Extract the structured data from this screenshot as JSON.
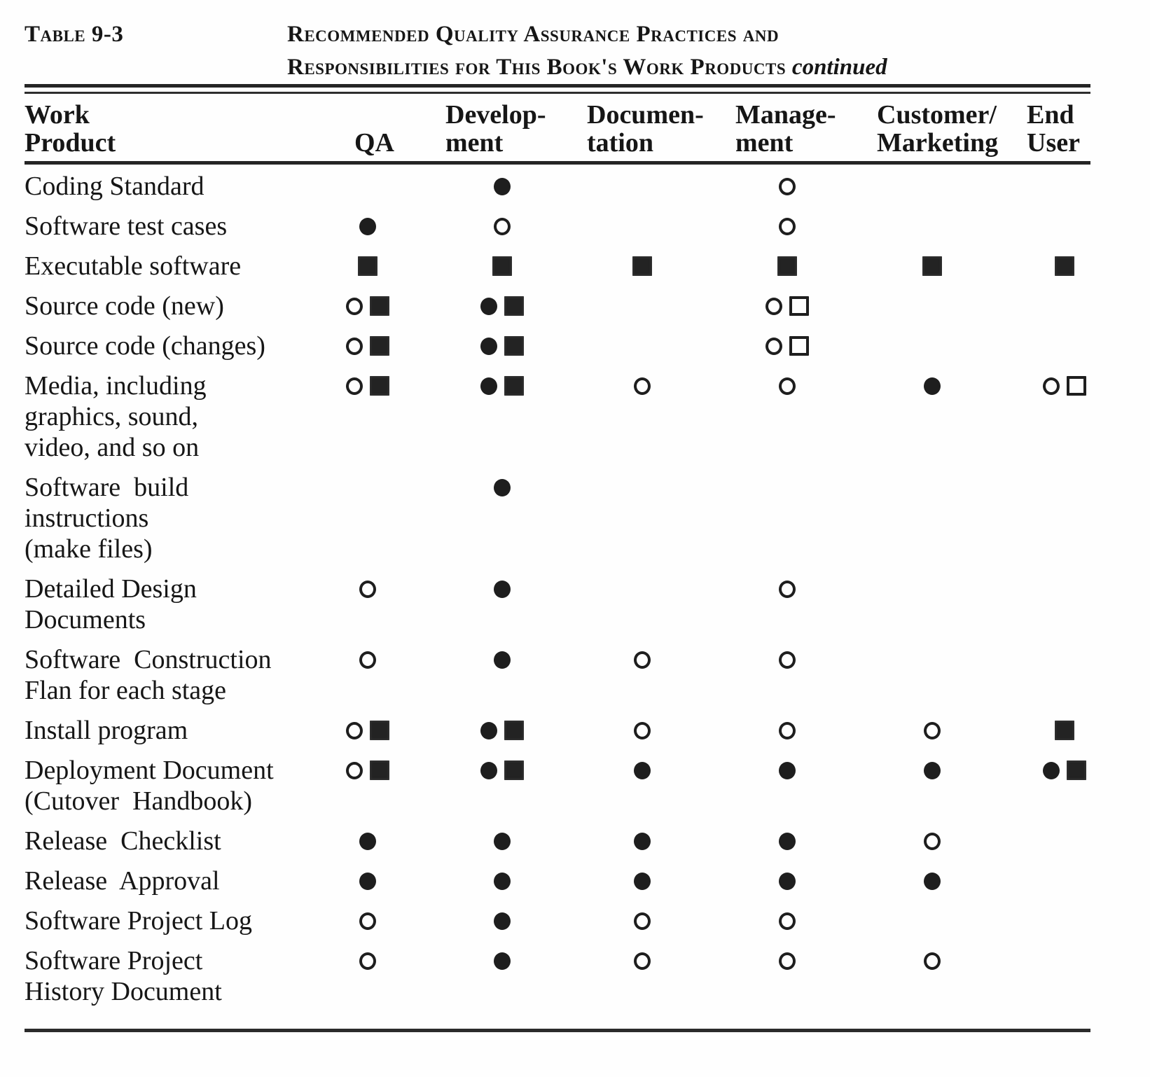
{
  "page": {
    "label": "Table 9-3",
    "title_line1": "Recommended Quality Assurance Practices and",
    "title_line2": "Responsibilities for This Book's Work Products",
    "title_continued": "continued"
  },
  "columns": [
    {
      "id": "work_product",
      "line1": "Work",
      "line2": "Product"
    },
    {
      "id": "qa",
      "line1": "",
      "line2": "QA"
    },
    {
      "id": "development",
      "line1": "Develop-",
      "line2": "ment"
    },
    {
      "id": "documentation",
      "line1": "Documen-",
      "line2": "tation"
    },
    {
      "id": "management",
      "line1": "Manage-",
      "line2": "ment"
    },
    {
      "id": "customer_marketing",
      "line1": "Customer/",
      "line2": "Marketing"
    },
    {
      "id": "end_user",
      "line1": "End",
      "line2": "User"
    }
  ],
  "symbol_legend": {
    "filled-circle": "●",
    "open-circle": "○",
    "filled-square": "■",
    "open-square": "□"
  },
  "rows": [
    {
      "product_lines": [
        "Coding Standard"
      ],
      "qa": [],
      "development": [
        "filled-circle"
      ],
      "documentation": [],
      "management": [
        "open-circle"
      ],
      "customer_marketing": [],
      "end_user": []
    },
    {
      "product_lines": [
        "Software test cases"
      ],
      "qa": [
        "filled-circle"
      ],
      "development": [
        "open-circle"
      ],
      "documentation": [],
      "management": [
        "open-circle"
      ],
      "customer_marketing": [],
      "end_user": []
    },
    {
      "product_lines": [
        "Executable software"
      ],
      "qa": [
        "filled-square"
      ],
      "development": [
        "filled-square"
      ],
      "documentation": [
        "filled-square"
      ],
      "management": [
        "filled-square"
      ],
      "customer_marketing": [
        "filled-square"
      ],
      "end_user": [
        "filled-square"
      ]
    },
    {
      "product_lines": [
        "Source code (new)"
      ],
      "qa": [
        "open-circle",
        "filled-square"
      ],
      "development": [
        "filled-circle",
        "filled-square"
      ],
      "documentation": [],
      "management": [
        "open-circle",
        "open-square"
      ],
      "customer_marketing": [],
      "end_user": []
    },
    {
      "product_lines": [
        "Source code (changes)"
      ],
      "qa": [
        "open-circle",
        "filled-square"
      ],
      "development": [
        "filled-circle",
        "filled-square"
      ],
      "documentation": [],
      "management": [
        "open-circle",
        "open-square"
      ],
      "customer_marketing": [],
      "end_user": []
    },
    {
      "product_lines": [
        "Media, including",
        "graphics, sound,",
        "video, and so on"
      ],
      "qa": [
        "open-circle",
        "filled-square"
      ],
      "development": [
        "filled-circle",
        "filled-square"
      ],
      "documentation": [
        "open-circle"
      ],
      "management": [
        "open-circle"
      ],
      "customer_marketing": [
        "filled-circle"
      ],
      "end_user": [
        "open-circle",
        "open-square"
      ]
    },
    {
      "product_lines": [
        "Software  build",
        "instructions",
        "(make files)"
      ],
      "qa": [],
      "development": [
        "filled-circle"
      ],
      "documentation": [],
      "management": [],
      "customer_marketing": [],
      "end_user": []
    },
    {
      "product_lines": [
        "Detailed Design",
        "Documents"
      ],
      "qa": [
        "open-circle"
      ],
      "development": [
        "filled-circle"
      ],
      "documentation": [],
      "management": [
        "open-circle"
      ],
      "customer_marketing": [],
      "end_user": []
    },
    {
      "product_lines": [
        "Software  Construction",
        "Flan for each stage"
      ],
      "qa": [
        "open-circle"
      ],
      "development": [
        "filled-circle"
      ],
      "documentation": [
        "open-circle"
      ],
      "management": [
        "open-circle"
      ],
      "customer_marketing": [],
      "end_user": []
    },
    {
      "product_lines": [
        "Install program"
      ],
      "qa": [
        "open-circle",
        "filled-square"
      ],
      "development": [
        "filled-circle",
        "filled-square"
      ],
      "documentation": [
        "open-circle"
      ],
      "management": [
        "open-circle"
      ],
      "customer_marketing": [
        "open-circle"
      ],
      "end_user": [
        "filled-square"
      ]
    },
    {
      "product_lines": [
        "Deployment Document",
        "(Cutover  Handbook)"
      ],
      "qa": [
        "open-circle",
        "filled-square"
      ],
      "development": [
        "filled-circle",
        "filled-square"
      ],
      "documentation": [
        "filled-circle"
      ],
      "management": [
        "filled-circle"
      ],
      "customer_marketing": [
        "filled-circle"
      ],
      "end_user": [
        "filled-circle",
        "filled-square"
      ]
    },
    {
      "product_lines": [
        "Release  Checklist"
      ],
      "qa": [
        "filled-circle"
      ],
      "development": [
        "filled-circle"
      ],
      "documentation": [
        "filled-circle"
      ],
      "management": [
        "filled-circle"
      ],
      "customer_marketing": [
        "open-circle"
      ],
      "end_user": []
    },
    {
      "product_lines": [
        "Release  Approval"
      ],
      "qa": [
        "filled-circle"
      ],
      "development": [
        "filled-circle"
      ],
      "documentation": [
        "filled-circle"
      ],
      "management": [
        "filled-circle"
      ],
      "customer_marketing": [
        "filled-circle"
      ],
      "end_user": []
    },
    {
      "product_lines": [
        "Software Project Log"
      ],
      "qa": [
        "open-circle"
      ],
      "development": [
        "filled-circle"
      ],
      "documentation": [
        "open-circle"
      ],
      "management": [
        "open-circle"
      ],
      "customer_marketing": [],
      "end_user": []
    },
    {
      "product_lines": [
        "Software Project",
        "History Document"
      ],
      "qa": [
        "open-circle"
      ],
      "development": [
        "filled-circle"
      ],
      "documentation": [
        "open-circle"
      ],
      "management": [
        "open-circle"
      ],
      "customer_marketing": [
        "open-circle"
      ],
      "end_user": []
    }
  ]
}
